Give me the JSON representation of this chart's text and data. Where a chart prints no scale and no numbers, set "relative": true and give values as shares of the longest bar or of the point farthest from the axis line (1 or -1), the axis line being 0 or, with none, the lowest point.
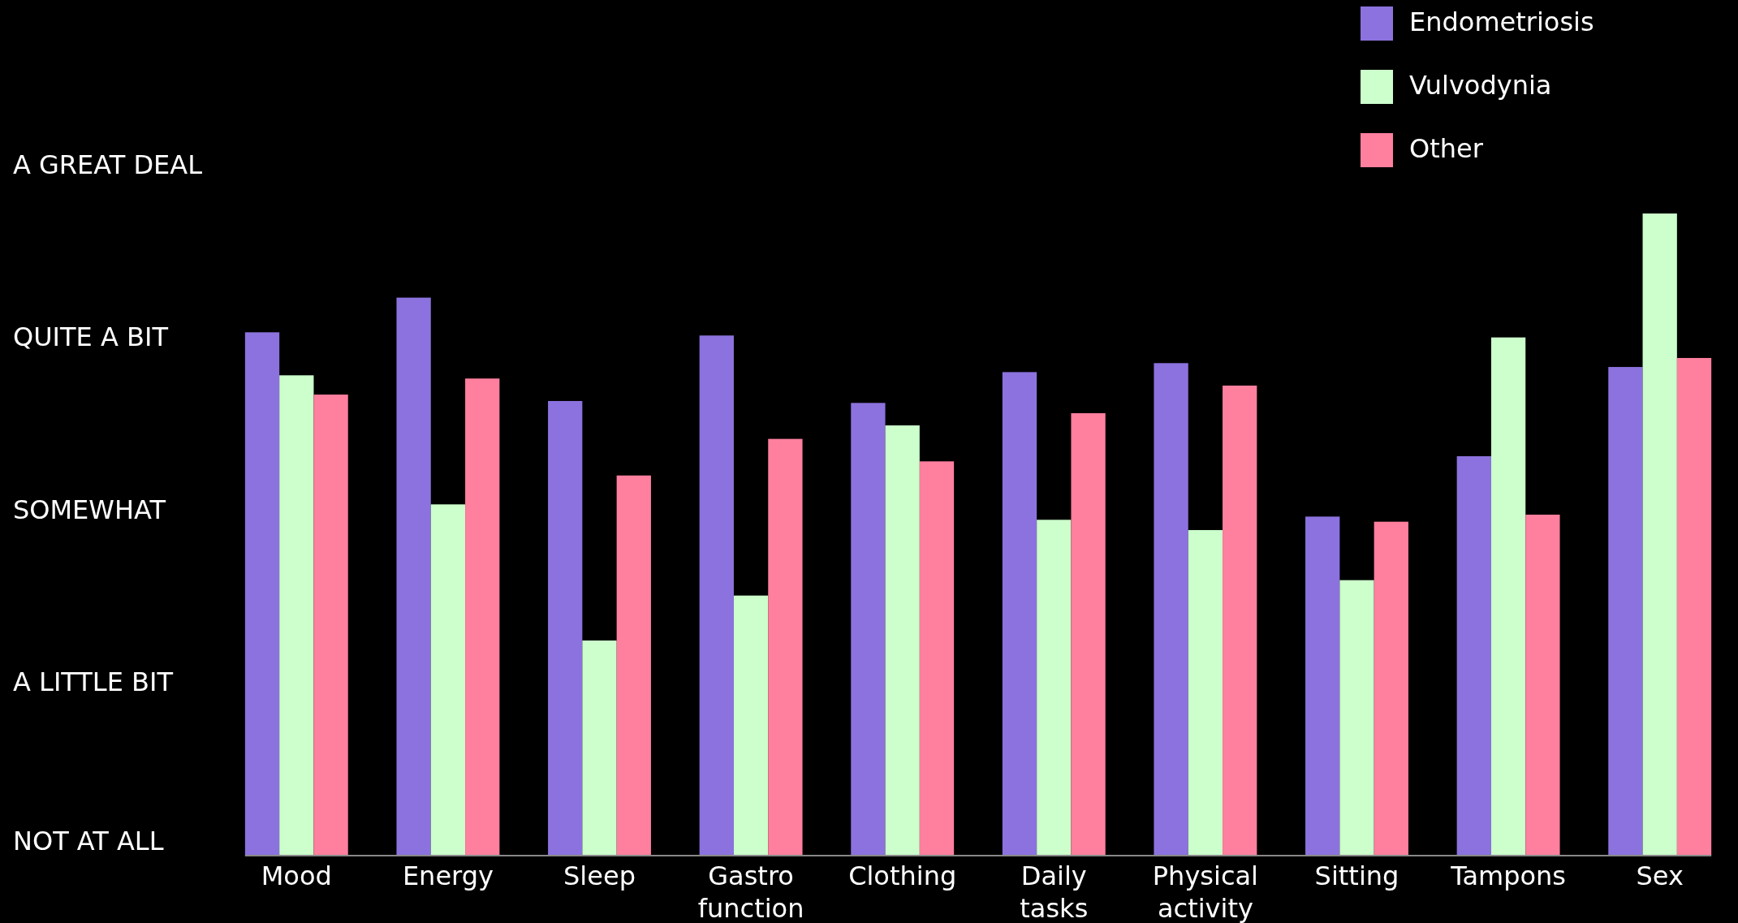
{
  "chart_data": {
    "type": "bar",
    "relative": true,
    "categories": [
      "Mood",
      "Energy",
      "Sleep",
      "Gastro function",
      "Clothing",
      "Daily tasks",
      "Physical activity",
      "Sitting",
      "Tampons",
      "Sex"
    ],
    "series": [
      {
        "name": "Endometriosis",
        "color": "#8c72de",
        "values": [
          0.815,
          0.869,
          0.708,
          0.81,
          0.705,
          0.753,
          0.767,
          0.528,
          0.622,
          0.761
        ]
      },
      {
        "name": "Vulvodynia",
        "color": "#ccffcc",
        "values": [
          0.748,
          0.547,
          0.335,
          0.405,
          0.67,
          0.523,
          0.507,
          0.429,
          0.807,
          1
        ]
      },
      {
        "name": "Other",
        "color": "#ff7f9e",
        "values": [
          0.718,
          0.743,
          0.592,
          0.649,
          0.614,
          0.689,
          0.732,
          0.52,
          0.531,
          0.775
        ]
      }
    ],
    "annotations": [
      "A GREAT DEAL",
      "QUITE A BIT",
      "SOMEWHAT",
      "A LITTLE BIT",
      "NOT AT ALL"
    ],
    "legend": "top right"
  }
}
